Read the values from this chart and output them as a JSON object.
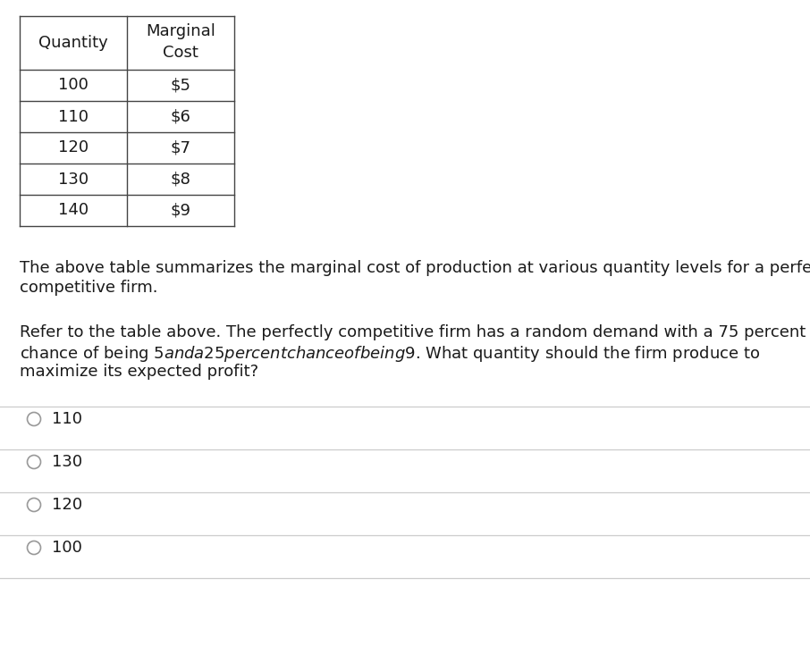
{
  "table_col1": [
    "100",
    "110",
    "120",
    "130",
    "140"
  ],
  "table_col2": [
    "$5",
    "$6",
    "$7",
    "$8",
    "$9"
  ],
  "header1": "Quantity",
  "header2_line1": "Marginal",
  "header2_line2": "Cost",
  "description_line1": "The above table summarizes the marginal cost of production at various quantity levels for a perfectly",
  "description_line2": "competitive firm.",
  "question_line1": "Refer to the table above. The perfectly competitive firm has a random demand with a 75 percent",
  "question_line2": "chance of being $5 and a 25 percent chance of being $9. What quantity should the firm produce to",
  "question_line3": "maximize its expected profit?",
  "choices": [
    "110",
    "130",
    "120",
    "100"
  ],
  "background_color": "#ffffff",
  "text_color": "#1a1a1a",
  "line_color": "#cccccc",
  "table_border_color": "#444444",
  "font_size_table": 13,
  "font_size_text": 13,
  "font_size_choices": 13
}
